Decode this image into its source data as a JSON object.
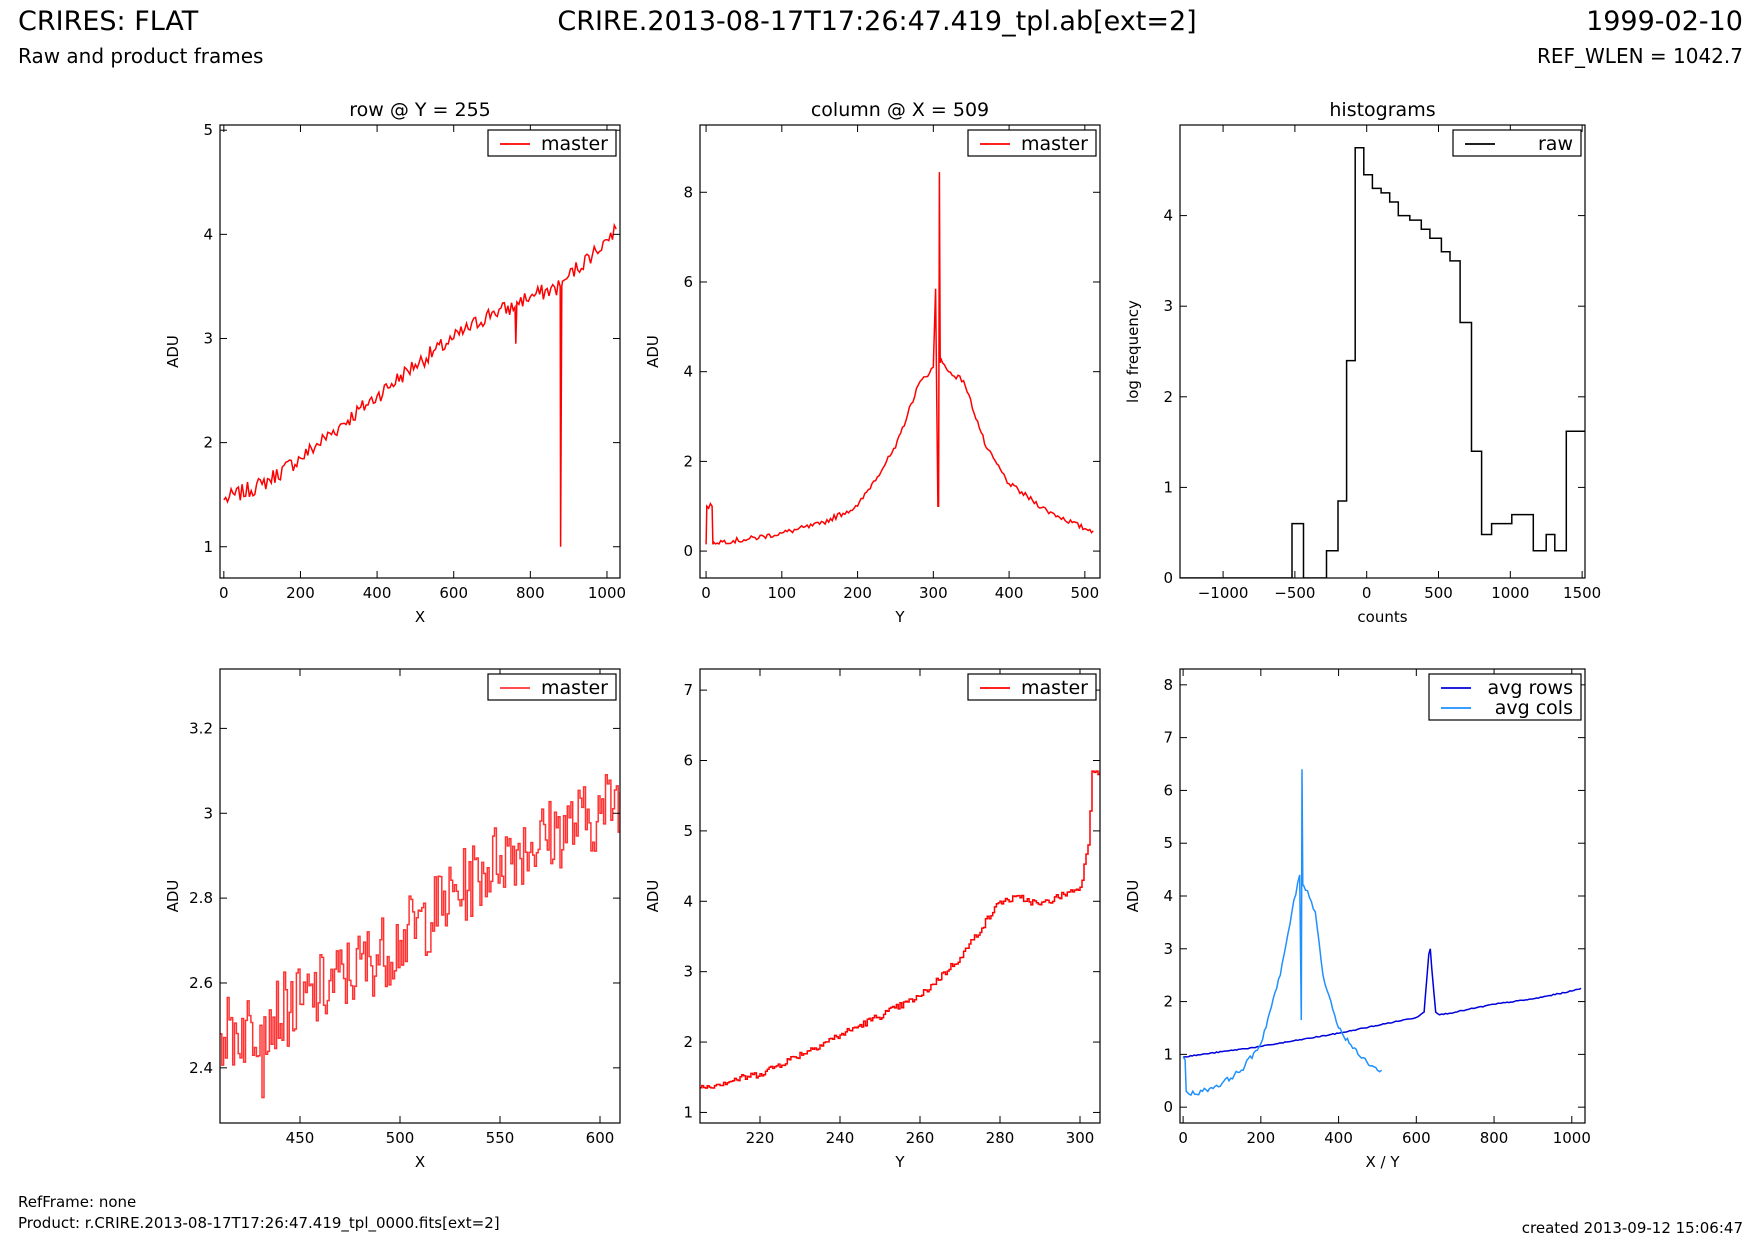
{
  "header": {
    "title_left": "CRIRES: FLAT",
    "subtitle_left": "Raw and product frames",
    "title_center": "CRIRE.2013-08-17T17:26:47.419_tpl.ab[ext=2]",
    "title_right": "1999-02-10",
    "subtitle_right": "REF_WLEN = 1042.7"
  },
  "footer": {
    "ref_frame": "RefFrame: none",
    "product": "Product: r.CRIRE.2013-08-17T17:26:47.419_tpl_0000.fits[ext=2]",
    "created": "created 2013-09-12 15:06:47"
  },
  "colors": {
    "master": "#ff0000",
    "raw": "#000000",
    "avg_rows": "#0000dd",
    "avg_cols": "#1e90ff"
  },
  "chart_data": [
    {
      "id": "row-full",
      "type": "line",
      "title": "row @ Y = 255",
      "xlabel": "X",
      "ylabel": "ADU",
      "xlim": [
        -10,
        1034
      ],
      "ylim": [
        0.7,
        5.05
      ],
      "xticks": [
        0,
        200,
        400,
        600,
        800,
        1000
      ],
      "yticks": [
        1,
        2,
        3,
        4,
        5
      ],
      "legend": "top-right",
      "series": [
        {
          "name": "master",
          "color": "#ff0000",
          "noise": 0.08,
          "step": false,
          "x": [
            0,
            100,
            200,
            300,
            400,
            500,
            600,
            700,
            760,
            762,
            765,
            800,
            878,
            879,
            882,
            884,
            900,
            1000,
            1024
          ],
          "y": [
            1.45,
            1.6,
            1.85,
            2.15,
            2.45,
            2.75,
            3.0,
            3.25,
            3.3,
            2.95,
            3.35,
            3.4,
            3.5,
            1.0,
            3.5,
            3.55,
            3.6,
            3.95,
            4.05
          ]
        }
      ]
    },
    {
      "id": "col-full",
      "type": "line",
      "title": "column @ X = 509",
      "xlabel": "Y",
      "ylabel": "ADU",
      "xlim": [
        -8,
        520
      ],
      "ylim": [
        -0.6,
        9.5
      ],
      "xticks": [
        0,
        100,
        200,
        300,
        400,
        500
      ],
      "yticks": [
        0,
        2,
        4,
        6,
        8
      ],
      "legend": "top-right",
      "series": [
        {
          "name": "master",
          "color": "#ff0000",
          "noise": 0.06,
          "step": false,
          "x": [
            0,
            1,
            8,
            9,
            10,
            50,
            100,
            150,
            200,
            250,
            280,
            300,
            303,
            304,
            306,
            307,
            308,
            309,
            310,
            312,
            320,
            340,
            370,
            400,
            450,
            500,
            511
          ],
          "y": [
            0.15,
            1.0,
            1.0,
            0.15,
            0.2,
            0.25,
            0.4,
            0.6,
            1.0,
            2.3,
            3.7,
            4.1,
            5.85,
            4.1,
            1.0,
            1.0,
            8.45,
            4.2,
            4.3,
            4.2,
            4.0,
            3.8,
            2.3,
            1.5,
            0.9,
            0.5,
            0.45
          ]
        }
      ]
    },
    {
      "id": "hist",
      "type": "line",
      "title": "histograms",
      "xlabel": "counts",
      "ylabel": "log frequency",
      "xlim": [
        -1300,
        1520
      ],
      "ylim": [
        0,
        5
      ],
      "xticks": [
        -1000,
        -500,
        0,
        500,
        1000,
        1500
      ],
      "yticks": [
        0,
        1,
        2,
        3,
        4
      ],
      "legend": "top-right",
      "series": [
        {
          "name": "raw",
          "color": "#000000",
          "noise": 0,
          "step": true,
          "x": [
            -1300,
            -520,
            -440,
            -280,
            -200,
            -140,
            -80,
            -20,
            40,
            100,
            160,
            220,
            300,
            380,
            440,
            520,
            580,
            650,
            730,
            800,
            870,
            1010,
            1160,
            1250,
            1310,
            1390,
            1460,
            1520
          ],
          "y": [
            0,
            0.6,
            0,
            0.3,
            0.85,
            2.4,
            4.75,
            4.45,
            4.3,
            4.25,
            4.15,
            4.0,
            3.95,
            3.85,
            3.75,
            3.6,
            3.5,
            2.82,
            1.4,
            0.48,
            0.6,
            0.7,
            0.3,
            0.48,
            0.3,
            1.62,
            1.62,
            1.62
          ]
        }
      ]
    },
    {
      "id": "row-zoom",
      "type": "line",
      "title": "",
      "xlabel": "X",
      "ylabel": "ADU",
      "xlim": [
        410,
        610
      ],
      "ylim": [
        2.27,
        3.34
      ],
      "xticks": [
        450,
        500,
        550,
        600
      ],
      "yticks": [
        2.4,
        2.6,
        2.8,
        3.0,
        3.2
      ],
      "legend": "top-right",
      "series": [
        {
          "name": "master",
          "color": "#ff3333",
          "noise": 0.09,
          "step": true,
          "x": [
            410,
            430,
            431,
            432,
            450,
            500,
            550,
            600,
            610
          ],
          "y": [
            2.48,
            2.5,
            2.33,
            2.52,
            2.55,
            2.7,
            2.9,
            3.0,
            3.05
          ]
        }
      ]
    },
    {
      "id": "col-zoom",
      "type": "line",
      "title": "",
      "xlabel": "Y",
      "ylabel": "ADU",
      "xlim": [
        205,
        305
      ],
      "ylim": [
        0.85,
        7.3
      ],
      "xticks": [
        220,
        240,
        260,
        280,
        300
      ],
      "yticks": [
        1,
        2,
        3,
        4,
        5,
        6,
        7
      ],
      "legend": "top-right",
      "series": [
        {
          "name": "master",
          "color": "#ff0000",
          "noise": 0.05,
          "step": true,
          "x": [
            205,
            220,
            240,
            260,
            270,
            280,
            285,
            290,
            300,
            302,
            303,
            304,
            305
          ],
          "y": [
            1.35,
            1.55,
            2.1,
            2.65,
            3.2,
            4.0,
            4.05,
            3.95,
            4.2,
            4.8,
            5.85,
            5.85,
            5.85
          ]
        }
      ]
    },
    {
      "id": "avg",
      "type": "line",
      "title": "",
      "xlabel": "X / Y",
      "ylabel": "ADU",
      "xlim": [
        -8,
        1034
      ],
      "ylim": [
        -0.3,
        8.3
      ],
      "xticks": [
        0,
        200,
        400,
        600,
        800,
        1000
      ],
      "yticks": [
        0,
        1,
        2,
        3,
        4,
        5,
        6,
        7,
        8
      ],
      "legend": "top-right",
      "series": [
        {
          "name": "avg rows",
          "color": "#0000dd",
          "noise": 0.01,
          "step": false,
          "x": [
            0,
            200,
            400,
            600,
            620,
            632,
            636,
            640,
            650,
            660,
            700,
            800,
            900,
            1000,
            1024
          ],
          "y": [
            0.95,
            1.15,
            1.4,
            1.7,
            1.8,
            2.9,
            3.0,
            2.6,
            1.8,
            1.75,
            1.8,
            1.95,
            2.05,
            2.2,
            2.25
          ]
        },
        {
          "name": "avg cols",
          "color": "#1e90ff",
          "noise": 0.05,
          "step": false,
          "x": [
            0,
            5,
            8,
            15,
            50,
            100,
            150,
            200,
            250,
            280,
            300,
            304,
            306,
            308,
            310,
            320,
            340,
            360,
            400,
            450,
            500,
            511
          ],
          "y": [
            0.95,
            0.9,
            0.3,
            0.25,
            0.3,
            0.45,
            0.7,
            1.2,
            2.5,
            3.7,
            4.4,
            1.65,
            6.4,
            4.2,
            4.2,
            4.1,
            3.7,
            2.5,
            1.5,
            1.0,
            0.7,
            0.7
          ]
        }
      ]
    }
  ]
}
